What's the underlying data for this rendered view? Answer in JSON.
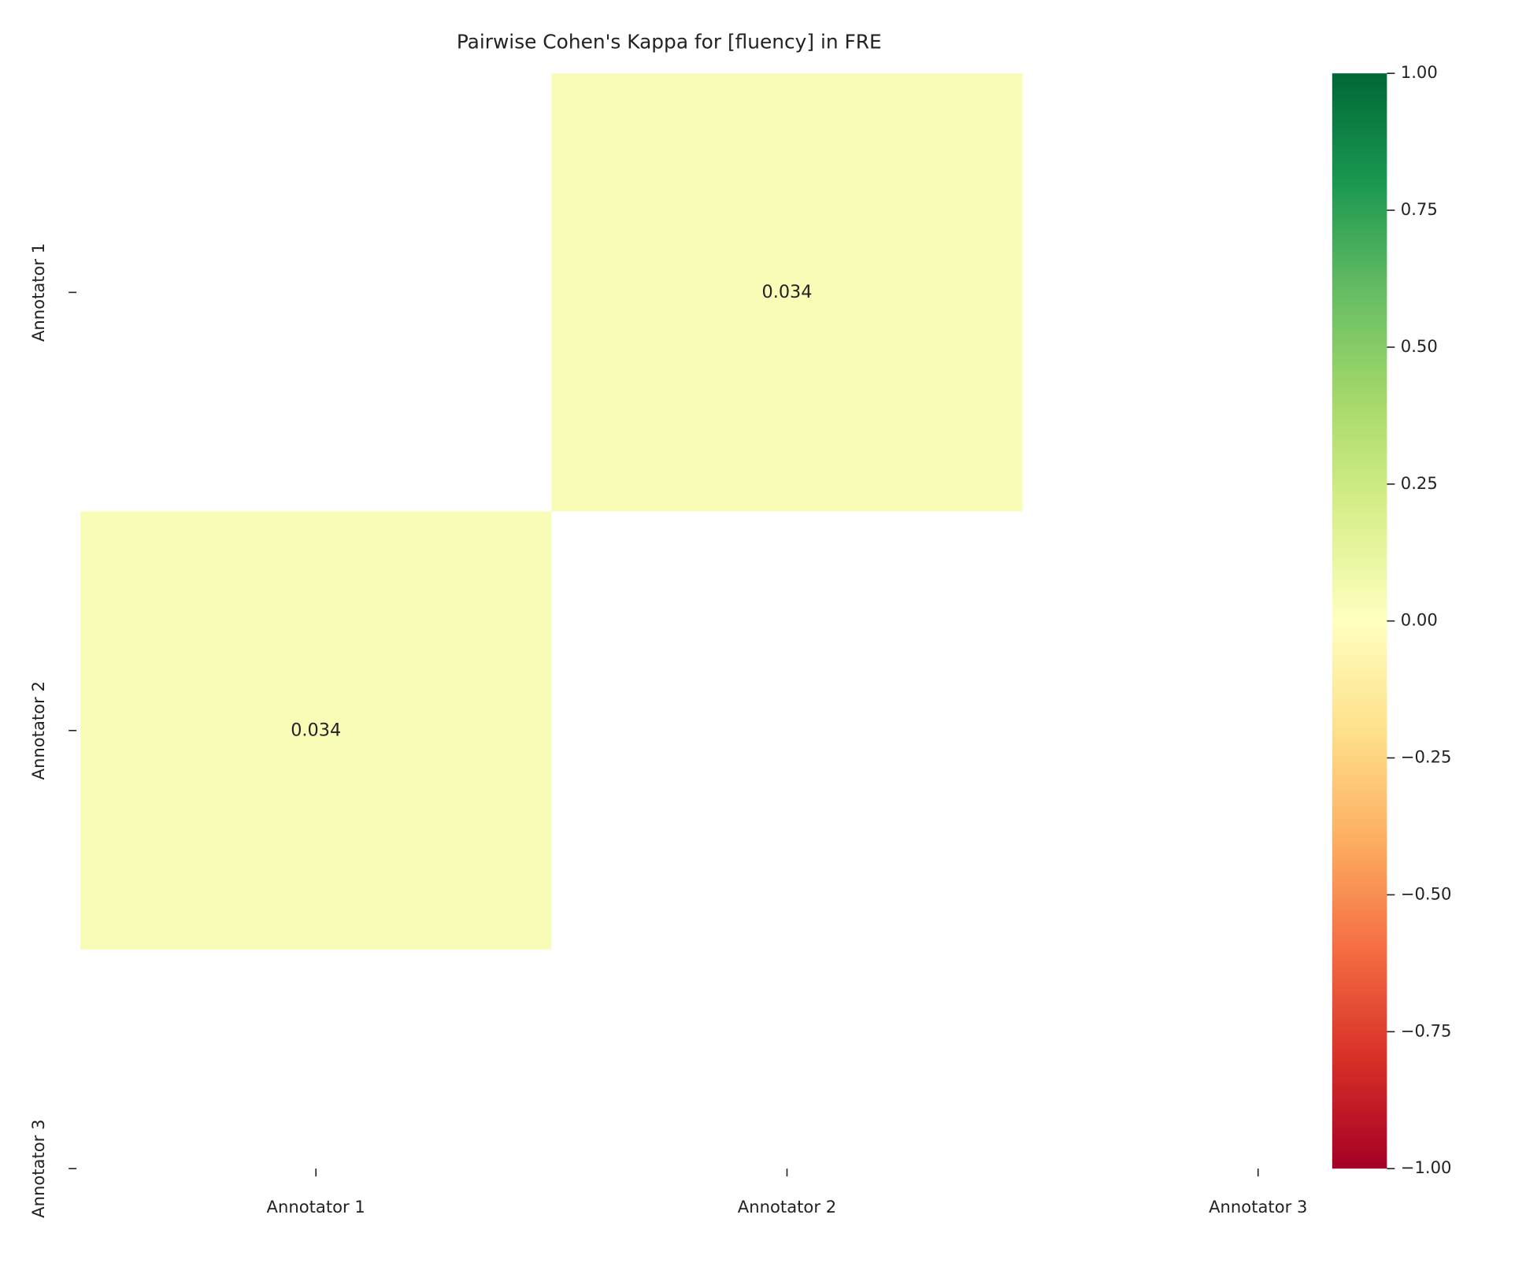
{
  "chart_data": {
    "type": "heatmap",
    "title": "Pairwise Cohen's Kappa for [fluency] in FRE",
    "x_categories": [
      "Annotator 1",
      "Annotator 2",
      "Annotator 3"
    ],
    "y_categories": [
      "Annotator 1",
      "Annotator 2",
      "Annotator 3"
    ],
    "values": [
      [
        null,
        0.034,
        null
      ],
      [
        0.034,
        null,
        null
      ],
      [
        null,
        null,
        null
      ]
    ],
    "colormap": "RdYlGn",
    "zlim": [
      -1,
      1
    ],
    "colorbar_ticks": [
      {
        "value": -1,
        "label": "−1.00"
      },
      {
        "value": -0.75,
        "label": "−0.75"
      },
      {
        "value": -0.5,
        "label": "−0.50"
      },
      {
        "value": -0.25,
        "label": "−0.25"
      },
      {
        "value": 0,
        "label": "0.00"
      },
      {
        "value": 0.25,
        "label": "0.25"
      },
      {
        "value": 0.5,
        "label": "0.50"
      },
      {
        "value": 0.75,
        "label": "0.75"
      },
      {
        "value": 1,
        "label": "1.00"
      }
    ]
  }
}
